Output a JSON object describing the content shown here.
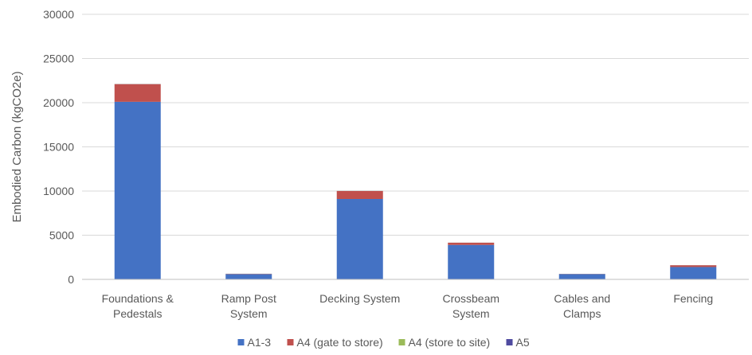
{
  "chart_data": {
    "type": "bar",
    "stacked": true,
    "title": "",
    "xlabel": "",
    "ylabel": "Embodied Carbon (kgCO2e)",
    "ylim": [
      0,
      30000
    ],
    "yticks": [
      0,
      5000,
      10000,
      15000,
      20000,
      25000,
      30000
    ],
    "grid": true,
    "legend_position": "bottom",
    "categories": [
      [
        "Foundations &",
        "Pedestals"
      ],
      [
        "Ramp Post",
        "System"
      ],
      [
        "Decking System"
      ],
      [
        "Crossbeam",
        "System"
      ],
      [
        "Cables and",
        "Clamps"
      ],
      [
        "Fencing"
      ]
    ],
    "series": [
      {
        "name": "A1-3",
        "color": "#4472C4",
        "values": [
          20100,
          600,
          9100,
          3900,
          600,
          1400
        ]
      },
      {
        "name": "A4 (gate to store)",
        "color": "#C0504D",
        "values": [
          2000,
          30,
          900,
          250,
          20,
          200
        ]
      },
      {
        "name": "A4 (store to site)",
        "color": "#9BBB59",
        "values": [
          10,
          5,
          10,
          5,
          5,
          5
        ]
      },
      {
        "name": "A5",
        "color": "#4F4BA0",
        "values": [
          10,
          5,
          10,
          5,
          5,
          5
        ]
      }
    ]
  }
}
